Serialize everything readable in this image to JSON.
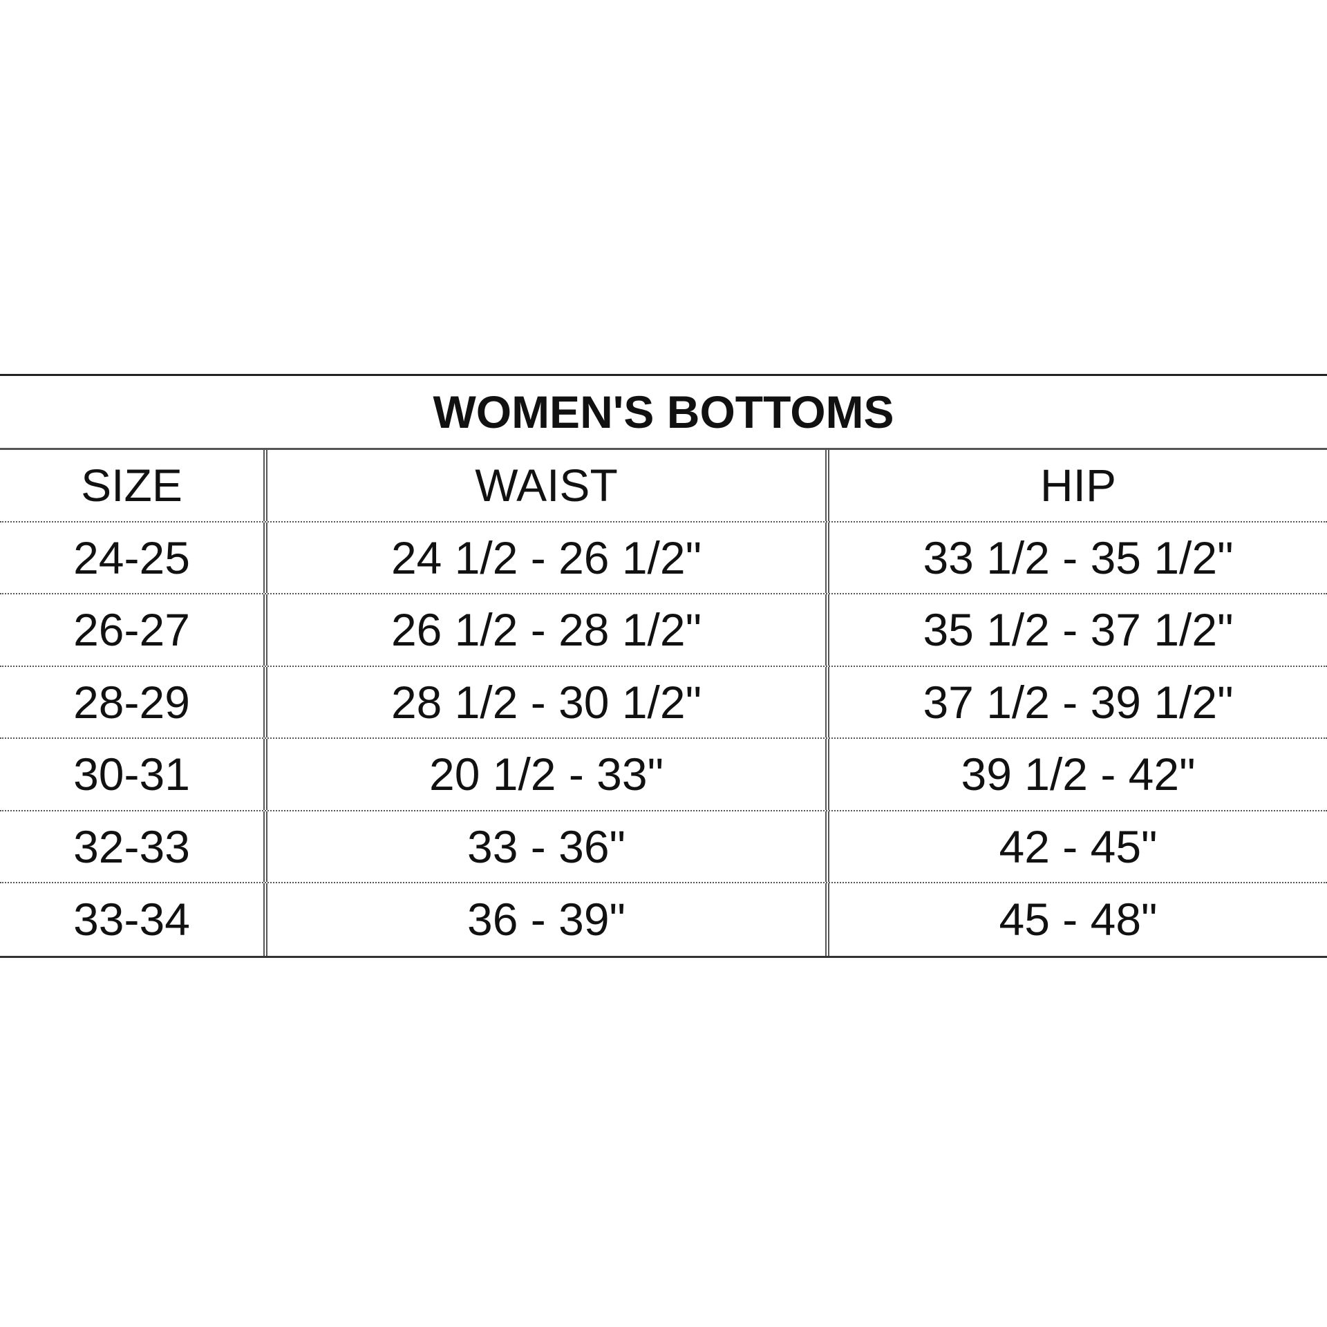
{
  "title": "WOMEN'S BOTTOMS",
  "columns": [
    "SIZE",
    "WAIST",
    "HIP"
  ],
  "rows": [
    [
      "24-25",
      "24 1/2 - 26 1/2\"",
      "33 1/2 - 35 1/2\""
    ],
    [
      "26-27",
      "26 1/2 - 28 1/2\"",
      "35 1/2 - 37 1/2\""
    ],
    [
      "28-29",
      "28 1/2 - 30 1/2\"",
      "37 1/2 - 39 1/2\""
    ],
    [
      "30-31",
      "20 1/2 - 33\"",
      "39 1/2 - 42\""
    ],
    [
      "32-33",
      "33 - 36\"",
      "42 - 45\""
    ],
    [
      "33-34",
      "36 - 39\"",
      "45 - 48\""
    ]
  ]
}
